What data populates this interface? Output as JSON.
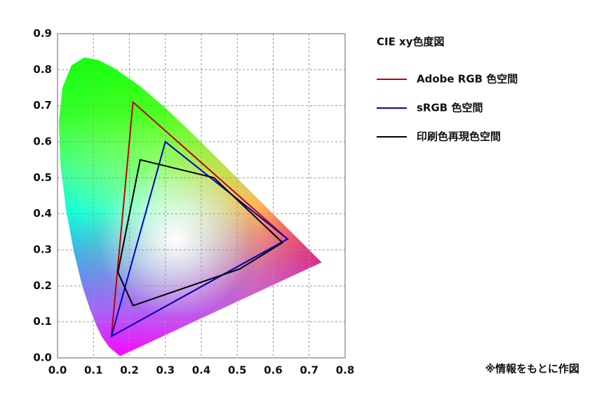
{
  "chart_data": {
    "type": "polygon",
    "legend_title": "CIE xy色度図",
    "note": "※情報をもとに作図",
    "legend": "right",
    "grid": true,
    "xlim": [
      0,
      0.8
    ],
    "ylim": [
      0,
      0.9
    ],
    "xticks": [
      {
        "value": 0,
        "label": "0.0"
      },
      0.1,
      0.2,
      0.3,
      0.4,
      0.5,
      0.6,
      0.7,
      0.8
    ],
    "yticks": [
      {
        "value": 0,
        "label": "0.0"
      },
      0.1,
      0.2,
      0.3,
      0.4,
      0.5,
      0.6,
      0.7,
      0.8,
      0.9
    ],
    "locus": {
      "x": [
        0.1741,
        0.144,
        0.1241,
        0.1096,
        0.0913,
        0.0687,
        0.0454,
        0.0235,
        0.0082,
        0.0039,
        0.0139,
        0.0389,
        0.0743,
        0.1142,
        0.1547,
        0.2296,
        0.3016,
        0.3731,
        0.4441,
        0.5125,
        0.5752,
        0.627,
        0.6915,
        0.7347
      ],
      "y": [
        0.005,
        0.0297,
        0.0578,
        0.0868,
        0.1327,
        0.2007,
        0.295,
        0.4127,
        0.5384,
        0.6548,
        0.7502,
        0.812,
        0.8338,
        0.8262,
        0.8059,
        0.7543,
        0.6923,
        0.6245,
        0.5547,
        0.4866,
        0.4242,
        0.3725,
        0.3083,
        0.2653
      ]
    },
    "series": [
      {
        "name": "Adobe RGB 色空間",
        "color": "#c00000",
        "x": [
          0.64,
          0.21,
          0.15
        ],
        "y": [
          0.33,
          0.71,
          0.06
        ]
      },
      {
        "name": "sRGB 色空間",
        "color": "#0000cc",
        "x": [
          0.64,
          0.3,
          0.15
        ],
        "y": [
          0.33,
          0.6,
          0.06
        ]
      },
      {
        "name": "印刷色再現色空間",
        "color": "#000000",
        "x": [
          0.23,
          0.435,
          0.626,
          0.507,
          0.21,
          0.168
        ],
        "y": [
          0.55,
          0.5,
          0.32,
          0.247,
          0.145,
          0.238
        ]
      }
    ]
  }
}
